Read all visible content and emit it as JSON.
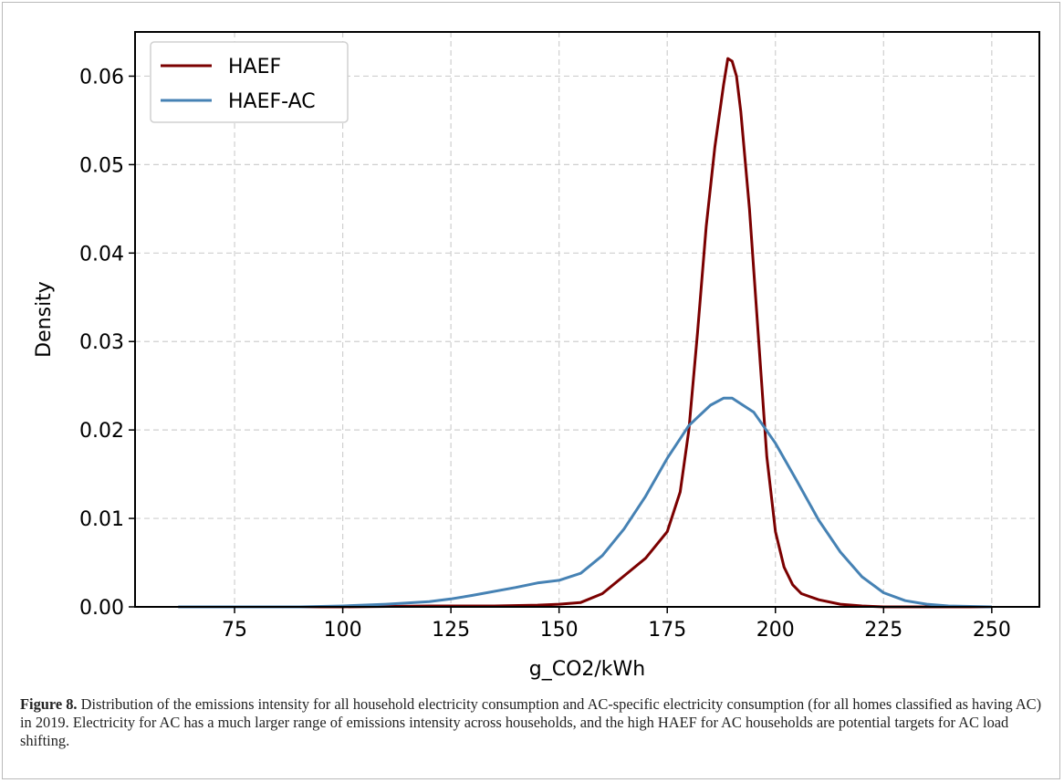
{
  "chart_data": {
    "type": "line",
    "xlabel": "g_CO2/kWh",
    "ylabel": "Density",
    "xlim": [
      52,
      261
    ],
    "ylim": [
      0,
      0.065
    ],
    "xticks": [
      75,
      100,
      125,
      150,
      175,
      200,
      225,
      250
    ],
    "yticks": [
      0.0,
      0.01,
      0.02,
      0.03,
      0.04,
      0.05,
      0.06
    ],
    "ytick_labels": [
      "0.00",
      "0.01",
      "0.02",
      "0.03",
      "0.04",
      "0.05",
      "0.06"
    ],
    "grid": true,
    "legend_position": "top-left",
    "series": [
      {
        "name": "HAEF",
        "color": "#7b0000",
        "x": [
          62,
          100,
          120,
          135,
          145,
          150,
          155,
          160,
          165,
          170,
          175,
          178,
          180,
          182,
          184,
          186,
          188,
          189,
          190,
          191,
          192,
          194,
          196,
          198,
          200,
          202,
          204,
          206,
          210,
          215,
          220,
          225,
          235,
          250
        ],
        "y": [
          0,
          0,
          0.0001,
          0.0001,
          0.0002,
          0.0003,
          0.0005,
          0.0015,
          0.0035,
          0.0055,
          0.0085,
          0.013,
          0.02,
          0.031,
          0.043,
          0.052,
          0.059,
          0.062,
          0.0617,
          0.06,
          0.056,
          0.045,
          0.031,
          0.017,
          0.0085,
          0.0045,
          0.0025,
          0.0015,
          0.0008,
          0.0003,
          0.0001,
          0,
          0,
          0
        ]
      },
      {
        "name": "HAEF-AC",
        "color": "#4682b4",
        "x": [
          62,
          90,
          100,
          110,
          120,
          125,
          130,
          140,
          145,
          150,
          155,
          160,
          165,
          170,
          175,
          180,
          185,
          188,
          190,
          195,
          200,
          205,
          210,
          215,
          220,
          225,
          230,
          235,
          240,
          250
        ],
        "y": [
          0,
          0,
          0.0001,
          0.0003,
          0.0006,
          0.0009,
          0.0013,
          0.0022,
          0.0027,
          0.003,
          0.0038,
          0.0058,
          0.0088,
          0.0125,
          0.0168,
          0.0205,
          0.0228,
          0.0236,
          0.0236,
          0.022,
          0.0185,
          0.0142,
          0.0098,
          0.0062,
          0.0034,
          0.0016,
          0.0007,
          0.0003,
          0.0001,
          0
        ]
      }
    ]
  },
  "caption": {
    "label": "Figure 8.",
    "text": "Distribution of the emissions intensity for all household electricity consumption and AC-specific electricity consumption (for all homes classified as having AC) in 2019. Electricity for AC has a much larger range of emissions intensity across households, and the high HAEF for AC households are potential targets for AC load shifting."
  }
}
